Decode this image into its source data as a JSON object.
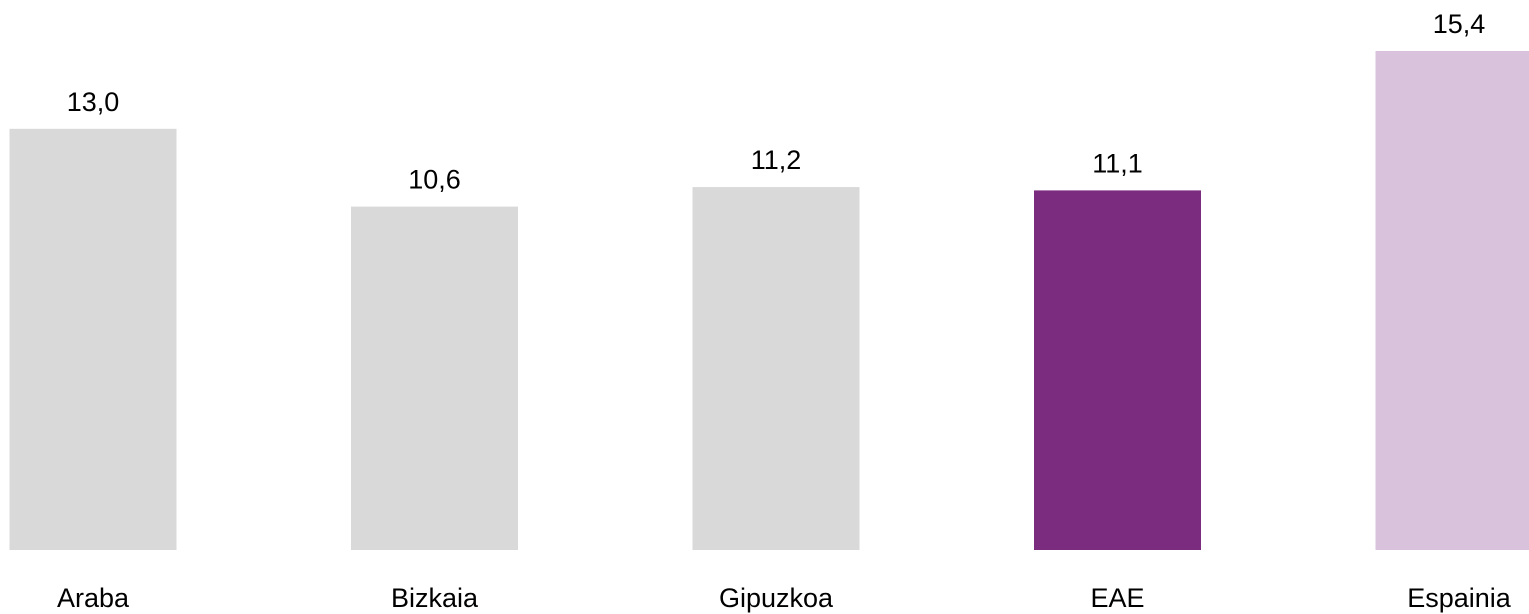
{
  "chart_data": {
    "type": "bar",
    "categories": [
      "Araba",
      "Bizkaia",
      "Gipuzkoa",
      "EAE",
      "Espainia"
    ],
    "values": [
      13.0,
      10.6,
      11.2,
      11.1,
      15.4
    ],
    "value_labels": [
      "13,0",
      "10,6",
      "11,2",
      "11,1",
      "15,4"
    ],
    "colors": [
      "#d9d9d9",
      "#d9d9d9",
      "#d9d9d9",
      "#7b2c7e",
      "#d9c3dc"
    ],
    "title": "",
    "xlabel": "",
    "ylabel": "",
    "grid": false,
    "legend": "none"
  }
}
